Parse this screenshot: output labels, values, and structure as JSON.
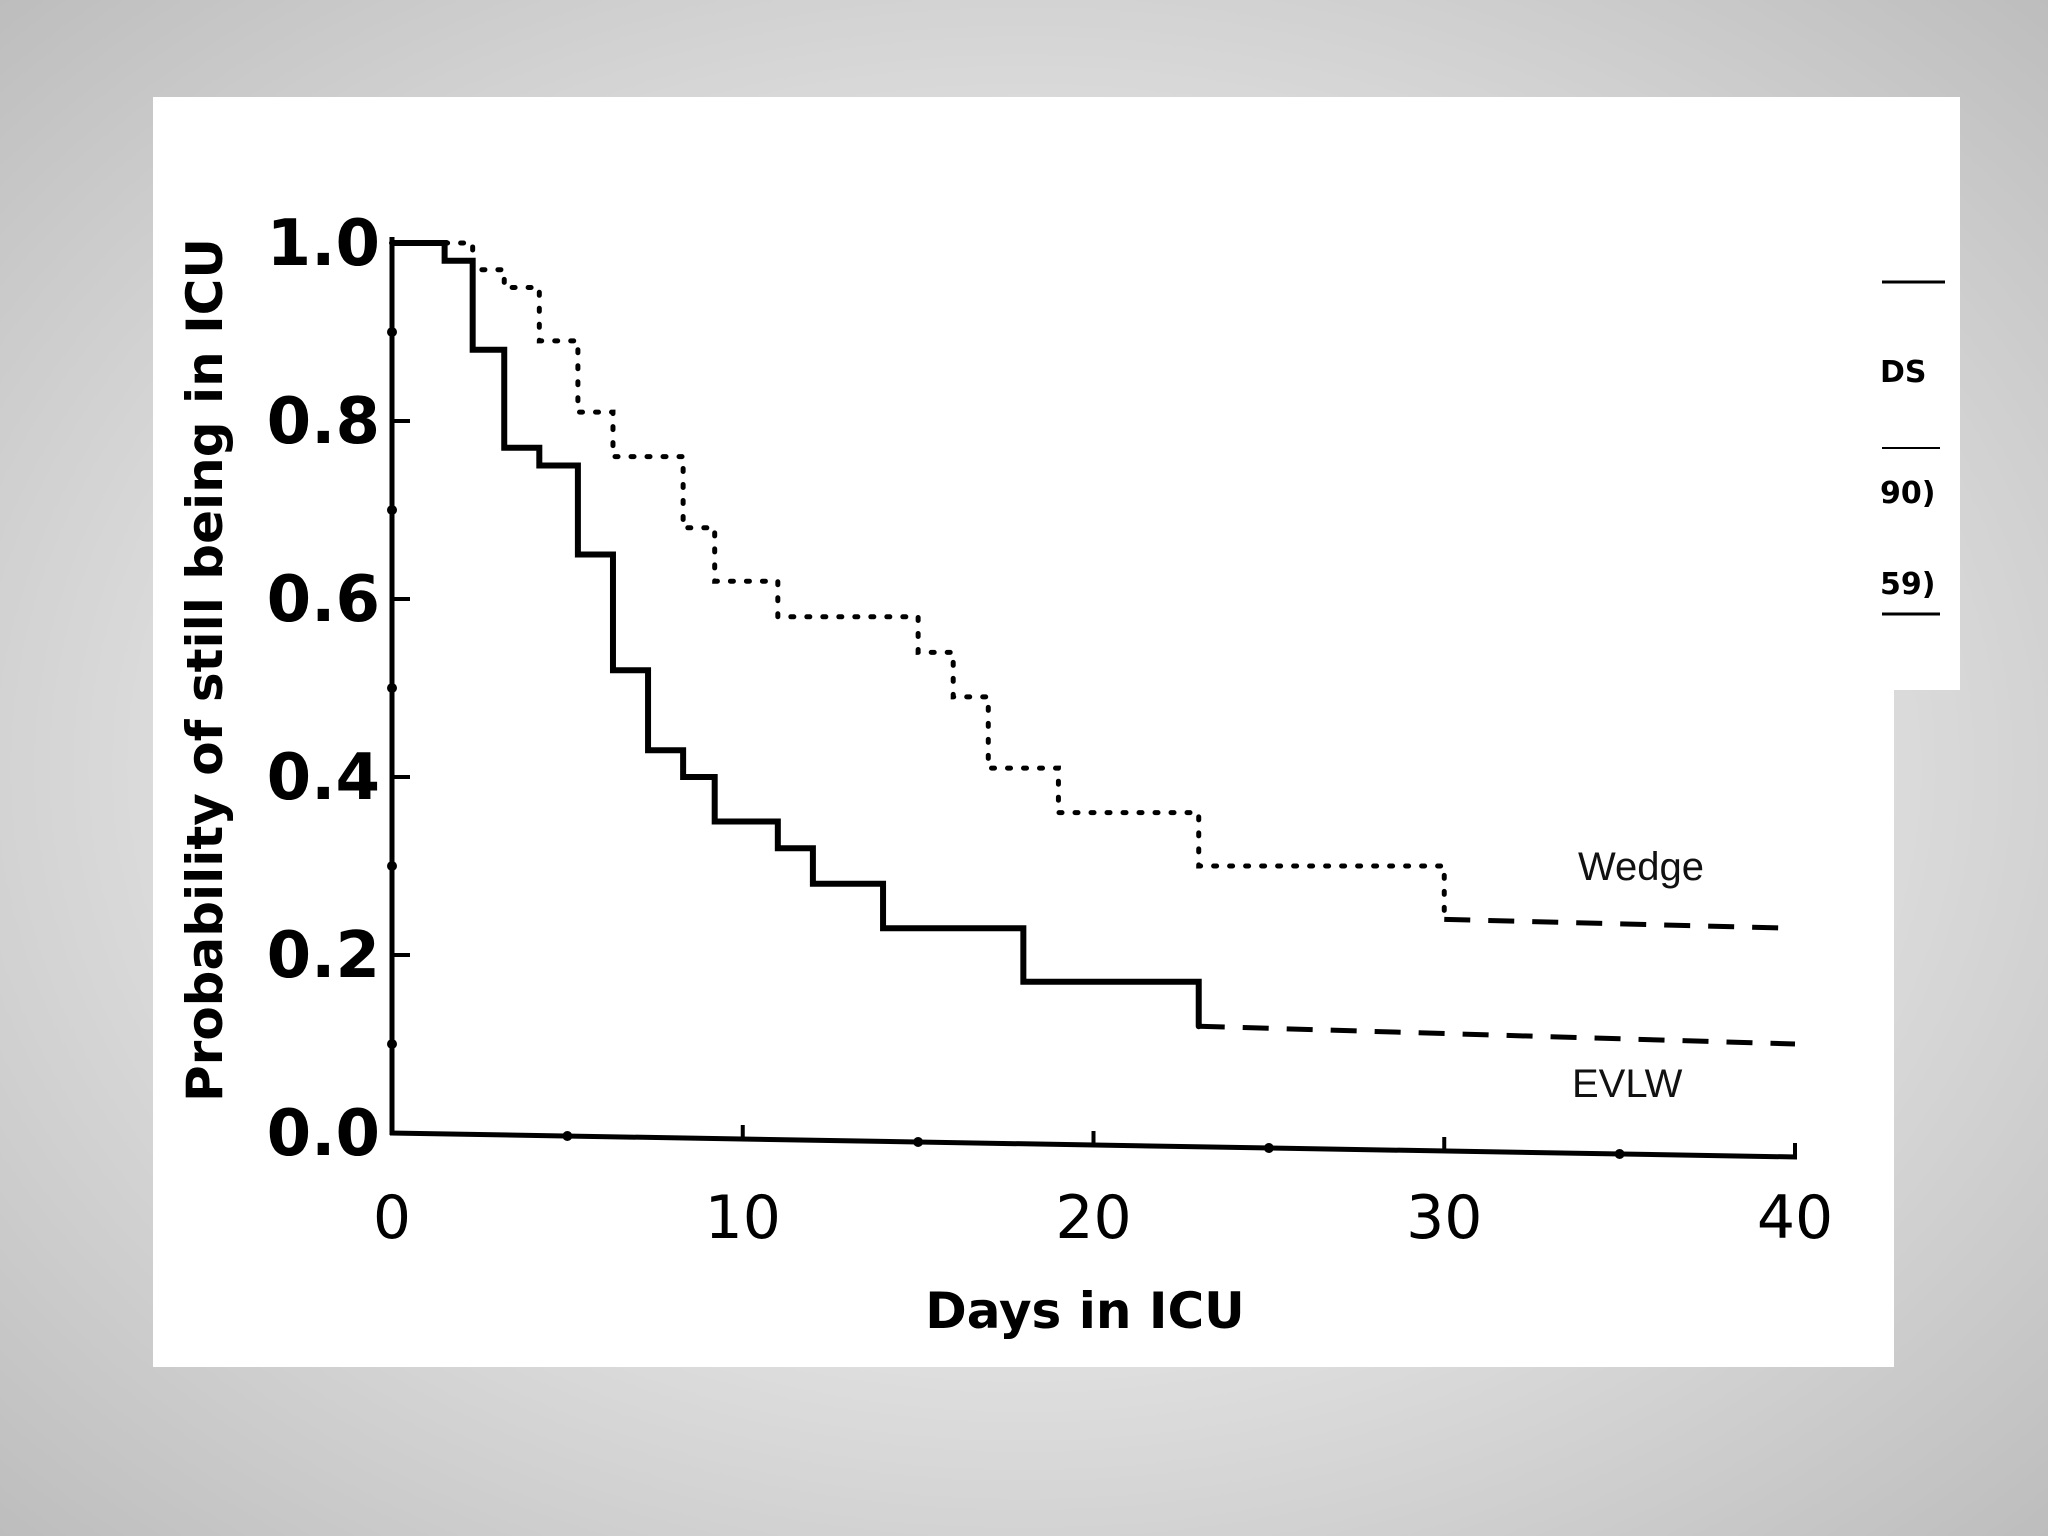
{
  "chart_data": {
    "type": "line",
    "step": true,
    "xlabel": "Days in ICU",
    "ylabel": "Probability of still being in ICU",
    "xlim": [
      0,
      40
    ],
    "ylim": [
      0,
      1.0
    ],
    "xticks": [
      0,
      10,
      20,
      30,
      40
    ],
    "xtick_labels": [
      "0",
      "10",
      "20",
      "30",
      "40"
    ],
    "yticks": [
      0,
      0.2,
      0.4,
      0.6,
      0.8,
      1.0
    ],
    "ytick_labels": [
      "0.0",
      "0.2",
      "0.4",
      "0.6",
      "0.8",
      "1.0"
    ],
    "series": [
      {
        "name": "EVLW",
        "style": "solid",
        "x": [
          0,
          1.5,
          2.3,
          3.2,
          4.2,
          5.3,
          6.3,
          7.3,
          8.3,
          9.2,
          11.0,
          12.0,
          14.0,
          18.0,
          23.0,
          40
        ],
        "y": [
          1.0,
          0.98,
          0.88,
          0.77,
          0.75,
          0.65,
          0.52,
          0.43,
          0.4,
          0.35,
          0.32,
          0.28,
          0.23,
          0.17,
          0.12,
          0.1
        ],
        "dashed_from_x": 23.0
      },
      {
        "name": "Wedge",
        "style": "dotted",
        "x": [
          1.5,
          2.3,
          3.2,
          4.2,
          5.3,
          6.3,
          8.3,
          9.2,
          11.0,
          15.0,
          16.0,
          17.0,
          19.0,
          23.0,
          30.0,
          40
        ],
        "y": [
          1.0,
          0.97,
          0.95,
          0.89,
          0.81,
          0.76,
          0.68,
          0.62,
          0.58,
          0.54,
          0.49,
          0.41,
          0.36,
          0.3,
          0.24,
          0.23
        ],
        "dashed_from_x": 30.0
      }
    ],
    "annotations": [
      "Wedge",
      "EVLW"
    ],
    "legend_fragment": [
      "DS",
      "90)",
      "59)"
    ]
  }
}
